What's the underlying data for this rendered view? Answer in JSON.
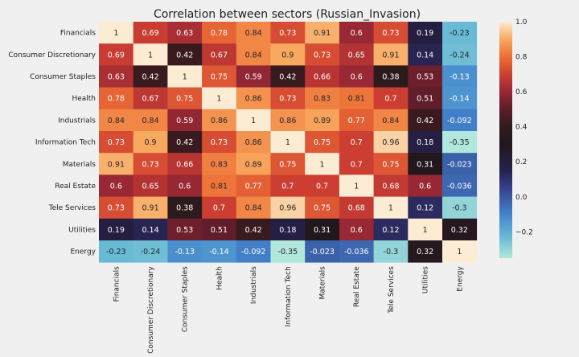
{
  "chart_data": {
    "type": "heatmap",
    "title": "Correlation between sectors (Russian_Invasion)",
    "xlabel": "",
    "ylabel": "",
    "categories": [
      "Financials",
      "Consumer Discretionary",
      "Consumer Staples",
      "Health",
      "Industrials",
      "Information Tech",
      "Materials",
      "Real Estate",
      "Tele Services",
      "Utilities",
      "Energy"
    ],
    "values": [
      [
        1,
        0.69,
        0.63,
        0.78,
        0.84,
        0.73,
        0.91,
        0.6,
        0.73,
        0.19,
        -0.23
      ],
      [
        0.69,
        1,
        0.42,
        0.67,
        0.84,
        0.9,
        0.73,
        0.65,
        0.91,
        0.14,
        -0.24
      ],
      [
        0.63,
        0.42,
        1,
        0.75,
        0.59,
        0.42,
        0.66,
        0.6,
        0.38,
        0.53,
        -0.13
      ],
      [
        0.78,
        0.67,
        0.75,
        1,
        0.86,
        0.73,
        0.83,
        0.81,
        0.7,
        0.51,
        -0.14
      ],
      [
        0.84,
        0.84,
        0.59,
        0.86,
        1,
        0.86,
        0.89,
        0.77,
        0.84,
        0.42,
        -0.092
      ],
      [
        0.73,
        0.9,
        0.42,
        0.73,
        0.86,
        1,
        0.75,
        0.7,
        0.96,
        0.18,
        -0.35
      ],
      [
        0.91,
        0.73,
        0.66,
        0.83,
        0.89,
        0.75,
        1,
        0.7,
        0.75,
        0.31,
        -0.023
      ],
      [
        0.6,
        0.65,
        0.6,
        0.81,
        0.77,
        0.7,
        0.7,
        1,
        0.68,
        0.6,
        -0.036
      ],
      [
        0.73,
        0.91,
        0.38,
        0.7,
        0.84,
        0.96,
        0.75,
        0.68,
        1,
        0.12,
        -0.3
      ],
      [
        0.19,
        0.14,
        0.53,
        0.51,
        0.42,
        0.18,
        0.31,
        0.6,
        0.12,
        1,
        0.32
      ],
      [
        -0.23,
        -0.24,
        -0.13,
        -0.14,
        -0.092,
        -0.35,
        -0.023,
        -0.036,
        -0.3,
        0.32,
        1
      ]
    ],
    "value_labels": [
      [
        "1",
        "0.69",
        "0.63",
        "0.78",
        "0.84",
        "0.73",
        "0.91",
        "0.6",
        "0.73",
        "0.19",
        "-0.23"
      ],
      [
        "0.69",
        "1",
        "0.42",
        "0.67",
        "0.84",
        "0.9",
        "0.73",
        "0.65",
        "0.91",
        "0.14",
        "-0.24"
      ],
      [
        "0.63",
        "0.42",
        "1",
        "0.75",
        "0.59",
        "0.42",
        "0.66",
        "0.6",
        "0.38",
        "0.53",
        "-0.13"
      ],
      [
        "0.78",
        "0.67",
        "0.75",
        "1",
        "0.86",
        "0.73",
        "0.83",
        "0.81",
        "0.7",
        "0.51",
        "-0.14"
      ],
      [
        "0.84",
        "0.84",
        "0.59",
        "0.86",
        "1",
        "0.86",
        "0.89",
        "0.77",
        "0.84",
        "0.42",
        "-0.092"
      ],
      [
        "0.73",
        "0.9",
        "0.42",
        "0.73",
        "0.86",
        "1",
        "0.75",
        "0.7",
        "0.96",
        "0.18",
        "-0.35"
      ],
      [
        "0.91",
        "0.73",
        "0.66",
        "0.83",
        "0.89",
        "0.75",
        "1",
        "0.7",
        "0.75",
        "0.31",
        "-0.023"
      ],
      [
        "0.6",
        "0.65",
        "0.6",
        "0.81",
        "0.77",
        "0.7",
        "0.7",
        "1",
        "0.68",
        "0.6",
        "-0.036"
      ],
      [
        "0.73",
        "0.91",
        "0.38",
        "0.7",
        "0.84",
        "0.96",
        "0.75",
        "0.68",
        "1",
        "0.12",
        "-0.3"
      ],
      [
        "0.19",
        "0.14",
        "0.53",
        "0.51",
        "0.42",
        "0.18",
        "0.31",
        "0.6",
        "0.12",
        "1",
        "0.32"
      ],
      [
        "-0.23",
        "-0.24",
        "-0.13",
        "-0.14",
        "-0.092",
        "-0.35",
        "-0.023",
        "-0.036",
        "-0.3",
        "0.32",
        "1"
      ]
    ],
    "colorbar": {
      "range": [
        -0.35,
        1
      ],
      "ticks": [
        -0.2,
        0.0,
        0.2,
        0.4,
        0.6,
        0.8,
        1.0
      ],
      "tick_labels": [
        "−0.2",
        "0.0",
        "0.2",
        "0.4",
        "0.6",
        "0.8",
        "1.0"
      ]
    },
    "colormap": "icefire",
    "grid": false,
    "background_color": "#f0f0f0"
  }
}
